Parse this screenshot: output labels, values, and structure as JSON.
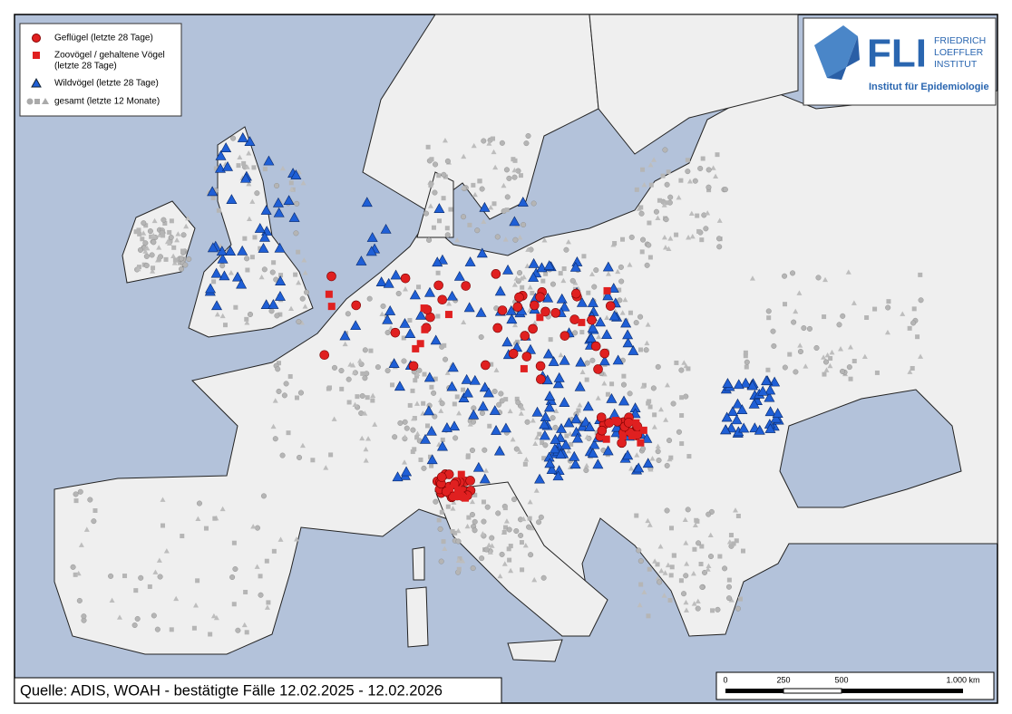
{
  "legend": {
    "items": [
      {
        "lines": [
          "Geflügel (letzte 28 Tage)"
        ]
      },
      {
        "lines": [
          "Zoovögel / gehaltene Vögel",
          "(letzte 28 Tage)"
        ]
      },
      {
        "lines": [
          "Wildvögel (letzte 28 Tage)"
        ]
      },
      {
        "lines": [
          "gesamt (letzte 12 Monate)"
        ]
      }
    ]
  },
  "logo": {
    "name": "FLI",
    "lines": [
      "FRIEDRICH",
      "LOEFFLER",
      "INSTITUT"
    ],
    "subtitle": "Institut für Epidemiologie"
  },
  "source": "Quelle: ADIS, WOAH - bestätigte Fälle 12.02.2025 - 12.02.2026",
  "scale_bar": {
    "labels": [
      "0",
      "250",
      "500",
      "1.000 km"
    ]
  }
}
